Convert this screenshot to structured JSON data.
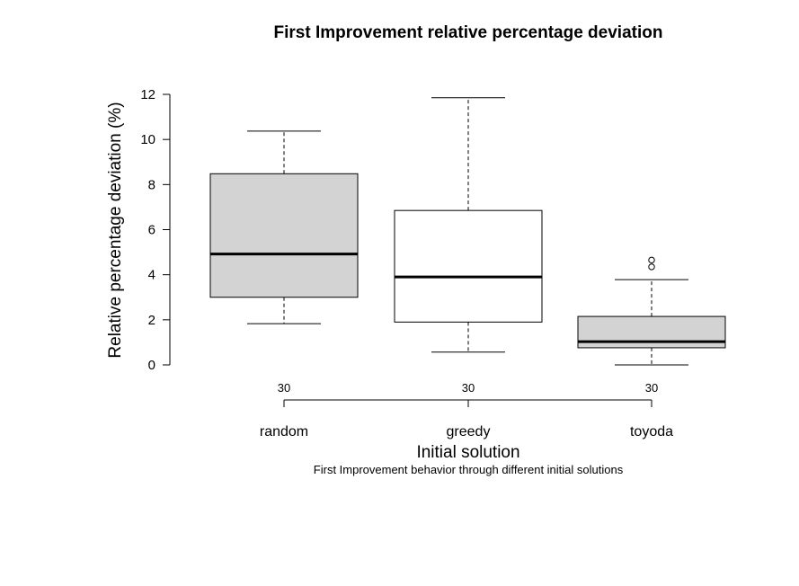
{
  "chart_data": {
    "type": "boxplot",
    "title": "First Improvement relative percentage deviation",
    "xlabel": "Initial solution",
    "ylabel": "Relative percentage deviation (%)",
    "subtitle": "First Improvement behavior through different initial solutions",
    "ylim": [
      0,
      12
    ],
    "yticks": [
      0,
      2,
      4,
      6,
      8,
      10,
      12
    ],
    "grid": false,
    "categories": [
      "random",
      "greedy",
      "toyoda"
    ],
    "counts": [
      "30",
      "30",
      "30"
    ],
    "boxes": [
      {
        "name": "random",
        "min": 1.83,
        "q1": 3.0,
        "median": 4.92,
        "q3": 8.48,
        "max": 10.37,
        "outliers": [],
        "fill": "#d3d3d3"
      },
      {
        "name": "greedy",
        "min": 0.57,
        "q1": 1.9,
        "median": 3.9,
        "q3": 6.85,
        "max": 11.85,
        "outliers": [],
        "fill": "#ffffff"
      },
      {
        "name": "toyoda",
        "min": 0.0,
        "q1": 0.76,
        "median": 1.03,
        "q3": 2.15,
        "max": 3.78,
        "outliers": [
          4.35,
          4.65
        ],
        "fill": "#d3d3d3"
      }
    ]
  }
}
